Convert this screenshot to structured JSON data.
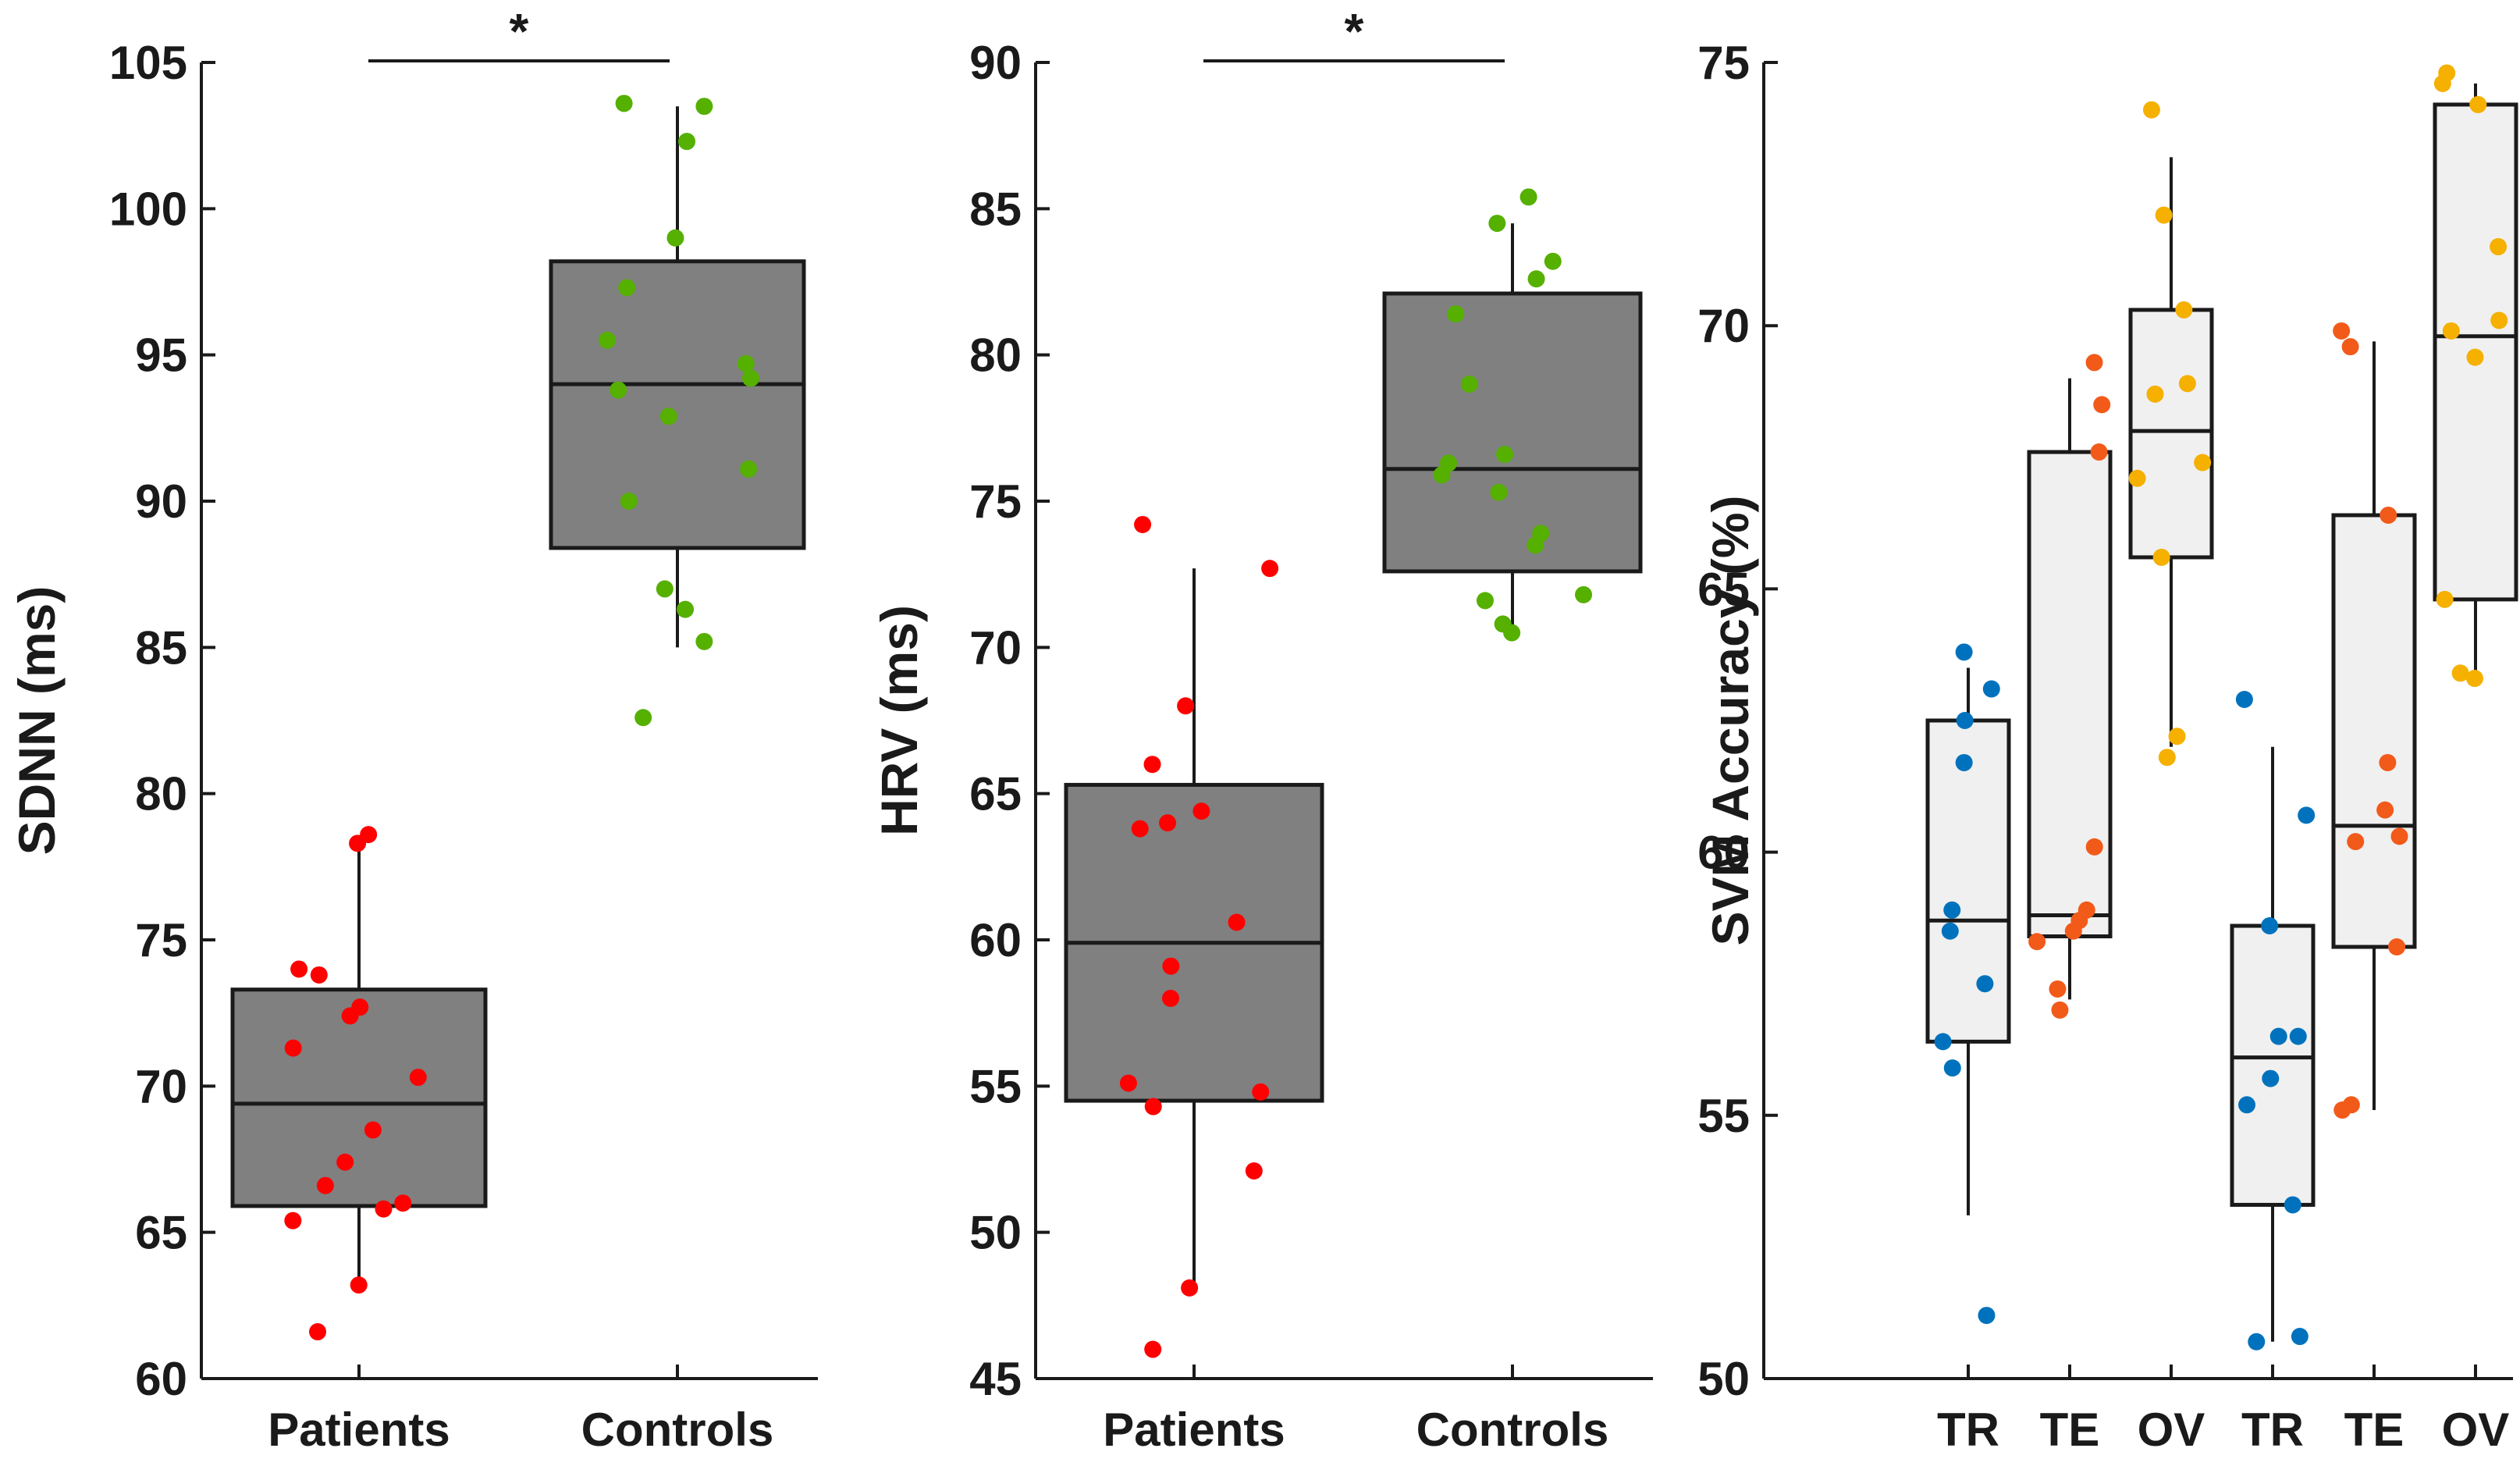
{
  "chart_data": [
    {
      "type": "box",
      "ylabel": "SDNN (ms)",
      "ylim": [
        60,
        105
      ],
      "yticks": [
        60,
        65,
        70,
        75,
        80,
        85,
        90,
        95,
        100,
        105
      ],
      "categories": [
        "Patients",
        "Controls"
      ],
      "significance": {
        "label": "*",
        "between": [
          "Patients",
          "Controls"
        ]
      },
      "series": [
        {
          "name": "Patients",
          "box_color": "#808080",
          "point_color": "#ff0000",
          "stats": {
            "whisker_low": 63.2,
            "q1": 65.9,
            "median": 69.4,
            "q3": 73.3,
            "whisker_high": 78.3
          },
          "points": [
            78.3,
            78.6,
            74.0,
            73.8,
            72.4,
            72.7,
            71.3,
            70.3,
            68.5,
            67.4,
            66.6,
            66.0,
            65.8,
            65.4,
            63.2,
            61.6
          ]
        },
        {
          "name": "Controls",
          "box_color": "#808080",
          "point_color": "#55b000",
          "stats": {
            "whisker_low": 85.0,
            "q1": 88.4,
            "median": 94.0,
            "q3": 98.2,
            "whisker_high": 103.5
          },
          "points": [
            103.5,
            103.6,
            102.3,
            99.0,
            97.3,
            95.5,
            94.7,
            94.2,
            93.8,
            92.9,
            91.1,
            90.0,
            87.0,
            86.3,
            85.2,
            82.6
          ]
        }
      ]
    },
    {
      "type": "box",
      "ylabel": "HRV (ms)",
      "ylim": [
        45,
        90
      ],
      "yticks": [
        45,
        50,
        55,
        60,
        65,
        70,
        75,
        80,
        85,
        90
      ],
      "categories": [
        "Patients",
        "Controls"
      ],
      "significance": {
        "label": "*",
        "between": [
          "Patients",
          "Controls"
        ]
      },
      "series": [
        {
          "name": "Patients",
          "box_color": "#808080",
          "point_color": "#ff0000",
          "stats": {
            "whisker_low": 48.0,
            "q1": 54.5,
            "median": 59.9,
            "q3": 65.3,
            "whisker_high": 72.7
          },
          "points": [
            74.2,
            72.7,
            68.0,
            66.0,
            64.4,
            64.0,
            63.8,
            60.6,
            59.1,
            58.0,
            55.1,
            54.8,
            54.3,
            52.1,
            48.1,
            46.0
          ]
        },
        {
          "name": "Controls",
          "box_color": "#808080",
          "point_color": "#55b000",
          "stats": {
            "whisker_low": 70.7,
            "q1": 72.6,
            "median": 76.1,
            "q3": 82.1,
            "whisker_high": 84.5
          },
          "points": [
            85.4,
            84.5,
            83.2,
            82.6,
            81.4,
            79.0,
            76.6,
            76.3,
            75.9,
            75.3,
            73.9,
            73.5,
            71.8,
            71.6,
            70.8,
            70.5
          ]
        }
      ]
    },
    {
      "type": "box",
      "ylabel": "SVM Accuracy (%)",
      "ylim": [
        50,
        75
      ],
      "yticks": [
        50,
        55,
        60,
        65,
        70,
        75
      ],
      "categories": [
        "TR",
        "TE",
        "OV",
        "TR",
        "TE",
        "OV"
      ],
      "series": [
        {
          "name": "TR",
          "box_color": "#f0f0f0",
          "point_color": "#0072bd",
          "stats": {
            "whisker_low": 53.1,
            "q1": 56.4,
            "median": 58.7,
            "q3": 62.5,
            "whisker_high": 63.5
          },
          "points": [
            63.8,
            63.1,
            62.5,
            61.7,
            58.9,
            58.5,
            57.5,
            56.4,
            55.9,
            51.2
          ]
        },
        {
          "name": "TE",
          "box_color": "#f0f0f0",
          "point_color": "#f25a1a",
          "stats": {
            "whisker_low": 57.2,
            "q1": 58.4,
            "median": 58.8,
            "q3": 67.6,
            "whisker_high": 69.0
          },
          "points": [
            69.3,
            68.5,
            67.6,
            60.1,
            58.9,
            58.7,
            58.5,
            58.3,
            57.4,
            57.0
          ]
        },
        {
          "name": "OV",
          "box_color": "#f0f0f0",
          "point_color": "#f5b000",
          "stats": {
            "whisker_low": 62.0,
            "q1": 65.6,
            "median": 68.0,
            "q3": 70.3,
            "whisker_high": 73.2
          },
          "points": [
            74.1,
            72.1,
            70.3,
            68.9,
            68.7,
            67.4,
            67.1,
            65.6,
            62.2,
            61.8
          ]
        },
        {
          "name": "TR",
          "box_color": "#f0f0f0",
          "point_color": "#0072bd",
          "stats": {
            "whisker_low": 50.7,
            "q1": 53.3,
            "median": 56.1,
            "q3": 58.6,
            "whisker_high": 62.0
          },
          "points": [
            62.9,
            60.7,
            58.6,
            56.5,
            56.5,
            55.7,
            55.2,
            53.3,
            50.8,
            50.7
          ]
        },
        {
          "name": "TE",
          "box_color": "#f0f0f0",
          "point_color": "#f25a1a",
          "stats": {
            "whisker_low": 55.1,
            "q1": 58.2,
            "median": 60.5,
            "q3": 66.4,
            "whisker_high": 69.7
          },
          "points": [
            69.9,
            69.6,
            66.4,
            61.7,
            60.8,
            60.3,
            60.2,
            58.2,
            55.2,
            55.1
          ]
        },
        {
          "name": "OV",
          "box_color": "#f0f0f0",
          "point_color": "#f5b000",
          "stats": {
            "whisker_low": 63.4,
            "q1": 64.8,
            "median": 69.8,
            "q3": 74.2,
            "whisker_high": 74.6
          },
          "points": [
            74.8,
            74.6,
            74.2,
            71.5,
            70.1,
            69.9,
            69.4,
            64.8,
            63.4,
            63.3
          ]
        }
      ]
    }
  ]
}
